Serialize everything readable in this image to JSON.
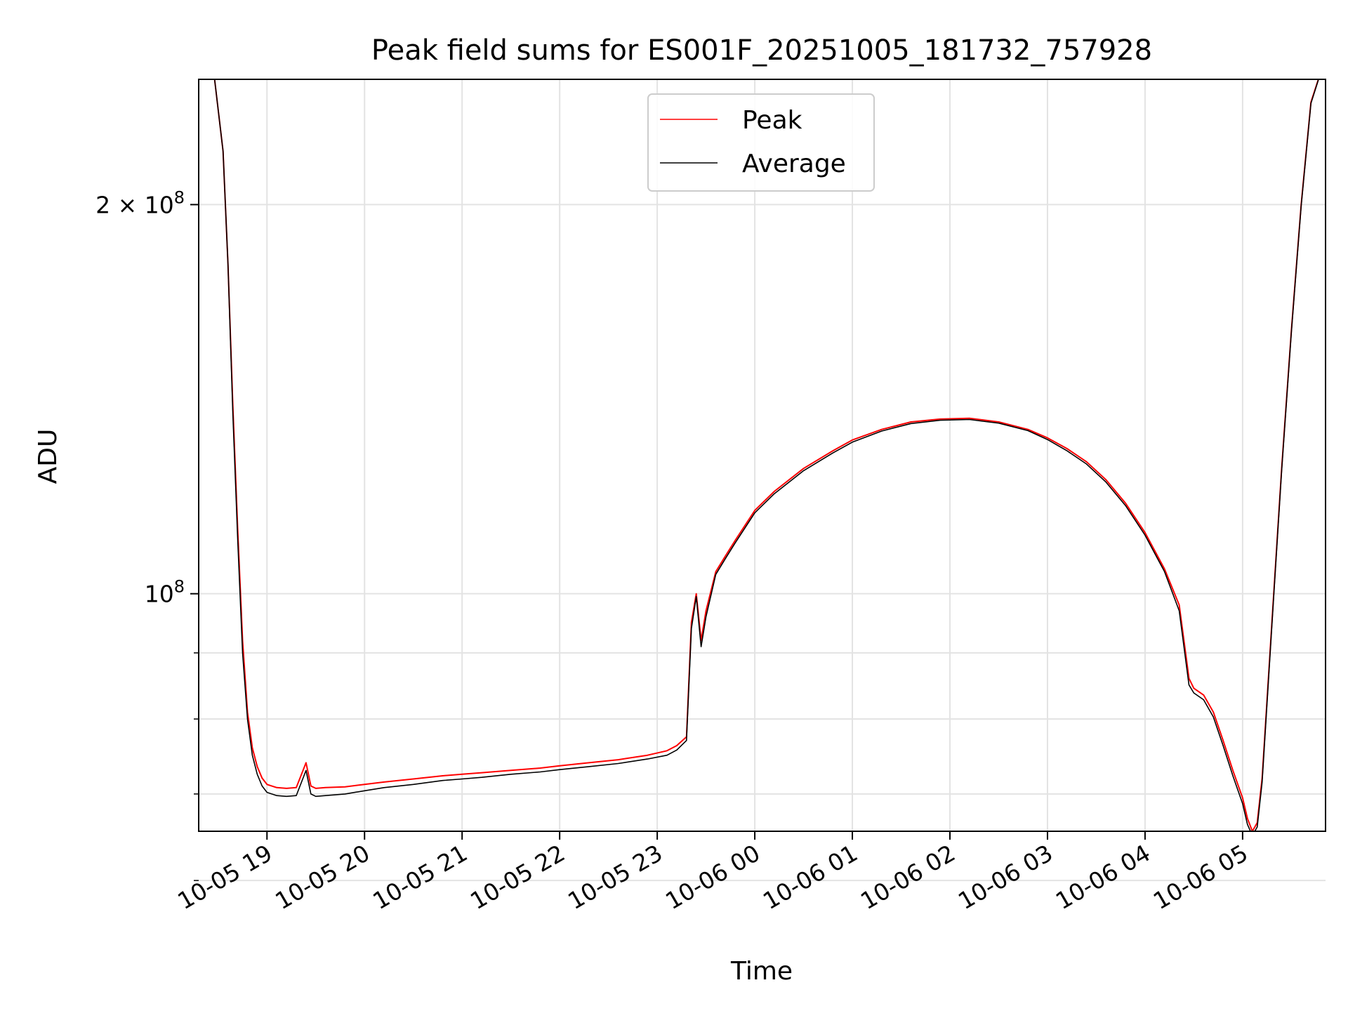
{
  "chart_data": {
    "type": "line",
    "title": "Peak field sums for ES001F_20251005_181732_757928",
    "xlabel": "Time",
    "ylabel": "ADU",
    "yscale": "log",
    "ylim": [
      65500000,
      250000000
    ],
    "xlim_hours": [
      -0.7,
      10.85
    ],
    "grid": true,
    "legend_position": "upper center",
    "x_ticks": [
      {
        "label": "10-05 19",
        "hours": 0
      },
      {
        "label": "10-05 20",
        "hours": 1
      },
      {
        "label": "10-05 21",
        "hours": 2
      },
      {
        "label": "10-05 22",
        "hours": 3
      },
      {
        "label": "10-05 23",
        "hours": 4
      },
      {
        "label": "10-06 00",
        "hours": 5
      },
      {
        "label": "10-06 01",
        "hours": 6
      },
      {
        "label": "10-06 02",
        "hours": 7
      },
      {
        "label": "10-06 03",
        "hours": 8
      },
      {
        "label": "10-06 04",
        "hours": 9
      },
      {
        "label": "10-06 05",
        "hours": 10
      }
    ],
    "y_major_ticks": [
      {
        "label": "10",
        "exp": "8",
        "value": 100000000
      },
      {
        "label": "2 × 10",
        "exp": "8",
        "value": 200000000
      }
    ],
    "y_minor_ticks": [
      60000000,
      70000000,
      80000000,
      90000000
    ],
    "x_unit": "hours since 2025-10-05 19:00",
    "series": [
      {
        "name": "Peak",
        "color": "#ff0000",
        "x": [
          -0.7,
          -0.55,
          -0.45,
          -0.4,
          -0.35,
          -0.3,
          -0.25,
          -0.2,
          -0.15,
          -0.1,
          -0.05,
          0,
          0.1,
          0.2,
          0.3,
          0.4,
          0.45,
          0.5,
          0.6,
          0.8,
          1,
          1.2,
          1.5,
          1.8,
          2,
          2.2,
          2.5,
          2.8,
          3,
          3.3,
          3.6,
          3.9,
          4.1,
          4.2,
          4.3,
          4.35,
          4.4,
          4.45,
          4.5,
          4.6,
          4.7,
          4.8,
          5,
          5.2,
          5.5,
          5.8,
          6,
          6.3,
          6.6,
          6.9,
          7.2,
          7.5,
          7.8,
          8,
          8.2,
          8.4,
          8.6,
          8.8,
          9,
          9.2,
          9.35,
          9.45,
          9.5,
          9.6,
          9.7,
          9.8,
          9.9,
          10,
          10.05,
          10.1,
          10.15,
          10.2,
          10.3,
          10.4,
          10.5,
          10.6,
          10.7,
          10.85
        ],
        "values": [
          260000000,
          255000000,
          220000000,
          180000000,
          140000000,
          112000000,
          92000000,
          81000000,
          76000000,
          73500000,
          72000000,
          71200000,
          70800000,
          70700000,
          70800000,
          74000000,
          71000000,
          70700000,
          70800000,
          70900000,
          71200000,
          71500000,
          71900000,
          72300000,
          72500000,
          72700000,
          73000000,
          73300000,
          73600000,
          74000000,
          74400000,
          75000000,
          75600000,
          76300000,
          77500000,
          95000000,
          100000000,
          92000000,
          97000000,
          104000000,
          107000000,
          110000000,
          116000000,
          120000000,
          125000000,
          129000000,
          131500000,
          134000000,
          135800000,
          136500000,
          136700000,
          135800000,
          134000000,
          132000000,
          129500000,
          126500000,
          122500000,
          117500000,
          111500000,
          104500000,
          98000000,
          86000000,
          84500000,
          83500000,
          81000000,
          77000000,
          73000000,
          69500000,
          67000000,
          65500000,
          66500000,
          72000000,
          95000000,
          125000000,
          160000000,
          200000000,
          240000000,
          260000000
        ]
      },
      {
        "name": "Average",
        "color": "#000000",
        "x": [
          -0.7,
          -0.55,
          -0.45,
          -0.4,
          -0.35,
          -0.3,
          -0.25,
          -0.2,
          -0.15,
          -0.1,
          -0.05,
          0,
          0.1,
          0.2,
          0.3,
          0.4,
          0.45,
          0.5,
          0.6,
          0.8,
          1,
          1.2,
          1.5,
          1.8,
          2,
          2.2,
          2.5,
          2.8,
          3,
          3.3,
          3.6,
          3.9,
          4.1,
          4.2,
          4.3,
          4.35,
          4.4,
          4.45,
          4.5,
          4.6,
          4.7,
          4.8,
          5,
          5.2,
          5.5,
          5.8,
          6,
          6.3,
          6.6,
          6.9,
          7.2,
          7.5,
          7.8,
          8,
          8.2,
          8.4,
          8.6,
          8.8,
          9,
          9.2,
          9.35,
          9.45,
          9.5,
          9.6,
          9.7,
          9.8,
          9.9,
          10,
          10.05,
          10.1,
          10.15,
          10.2,
          10.3,
          10.4,
          10.5,
          10.6,
          10.7,
          10.85
        ],
        "values": [
          260000000,
          255000000,
          220000000,
          180000000,
          138000000,
          110000000,
          90000000,
          80000000,
          75000000,
          72500000,
          71000000,
          70200000,
          69800000,
          69700000,
          69800000,
          73000000,
          70000000,
          69700000,
          69800000,
          70000000,
          70400000,
          70800000,
          71200000,
          71700000,
          71900000,
          72100000,
          72500000,
          72800000,
          73100000,
          73500000,
          73900000,
          74500000,
          75000000,
          75700000,
          77000000,
          94000000,
          99500000,
          91000000,
          96000000,
          103500000,
          106500000,
          109500000,
          115500000,
          119500000,
          124500000,
          128500000,
          131000000,
          133600000,
          135400000,
          136200000,
          136400000,
          135500000,
          133700000,
          131600000,
          129000000,
          126000000,
          122000000,
          117000000,
          111000000,
          104000000,
          97000000,
          85000000,
          83800000,
          82800000,
          80300000,
          76300000,
          72300000,
          68800000,
          66300000,
          65000000,
          66000000,
          71500000,
          94500000,
          124500000,
          159500000,
          199500000,
          239500000,
          260000000
        ]
      }
    ]
  }
}
